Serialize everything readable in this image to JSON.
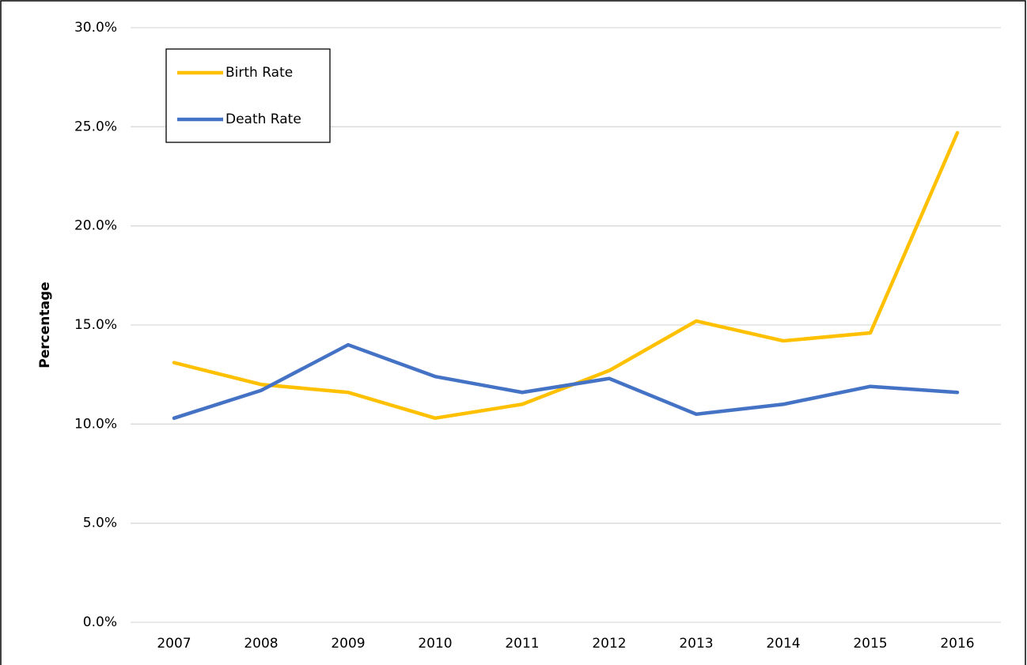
{
  "chart_data": {
    "type": "line",
    "y_label": "Percentage",
    "categories": [
      "2007",
      "2008",
      "2009",
      "2010",
      "2011",
      "2012",
      "2013",
      "2014",
      "2015",
      "2016"
    ],
    "series": [
      {
        "name": "Birth Rate",
        "color": "#ffc000",
        "values": [
          13.1,
          12.0,
          11.6,
          10.3,
          11.0,
          12.7,
          15.2,
          14.2,
          14.6,
          24.7
        ]
      },
      {
        "name": "Death Rate",
        "color": "#4472c4",
        "values": [
          10.3,
          11.7,
          14.0,
          12.4,
          11.6,
          12.3,
          10.5,
          11.0,
          11.9,
          11.6
        ]
      }
    ],
    "ylim": [
      0,
      30
    ],
    "yticks": [
      {
        "value": 0,
        "label": "0.0%"
      },
      {
        "value": 5,
        "label": "5.0%"
      },
      {
        "value": 10,
        "label": "10.0%"
      },
      {
        "value": 15,
        "label": "15.0%"
      },
      {
        "value": 20,
        "label": "20.0%"
      },
      {
        "value": 25,
        "label": "25.0%"
      },
      {
        "value": 30,
        "label": "30.0%"
      }
    ],
    "grid": true,
    "legend": "upper left"
  }
}
